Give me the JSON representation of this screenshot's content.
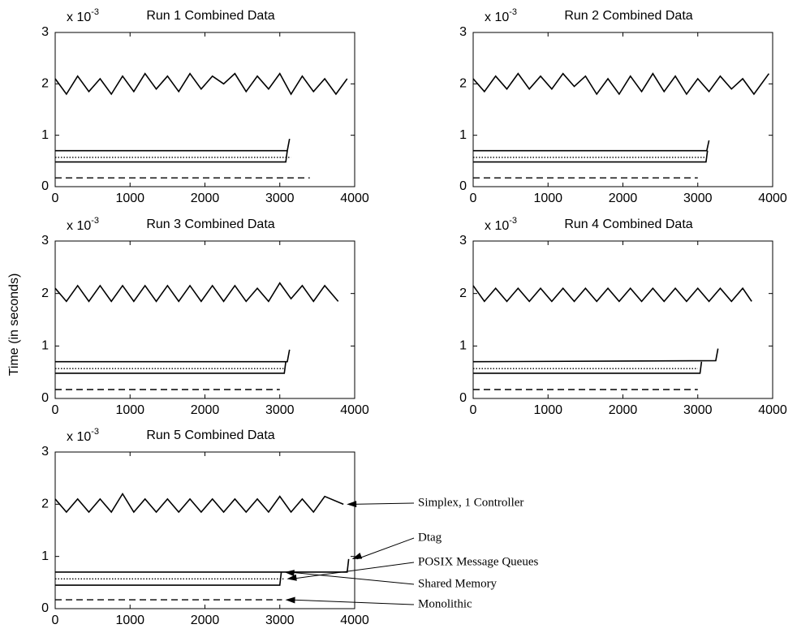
{
  "figure": {
    "ylabel": "Time (in seconds)"
  },
  "chart_data": [
    {
      "type": "line",
      "title": "Run 1 Combined Data",
      "y_multiplier": "x 10",
      "y_multiplier_exp": "-3",
      "xlim": [
        0,
        4000
      ],
      "ylim": [
        0,
        3
      ],
      "xticks": [
        0,
        1000,
        2000,
        3000,
        4000
      ],
      "yticks": [
        0,
        1,
        2,
        3
      ],
      "series": [
        {
          "color": "#000",
          "style": "solid",
          "x": [
            0,
            150,
            300,
            450,
            600,
            750,
            900,
            1050,
            1200,
            1350,
            1500,
            1650,
            1800,
            1950,
            2100,
            2250,
            2400,
            2550,
            2700,
            2850,
            3000,
            3150,
            3300,
            3450,
            3600,
            3750,
            3900
          ],
          "values": [
            2.1,
            1.8,
            2.15,
            1.85,
            2.1,
            1.8,
            2.15,
            1.85,
            2.2,
            1.9,
            2.15,
            1.85,
            2.2,
            1.9,
            2.15,
            2.0,
            2.2,
            1.85,
            2.15,
            1.9,
            2.2,
            1.8,
            2.15,
            1.85,
            2.1,
            1.8,
            2.1
          ]
        },
        {
          "color": "#000",
          "style": "solid",
          "x": [
            0,
            3100,
            3130
          ],
          "values": [
            0.7,
            0.7,
            0.93
          ]
        },
        {
          "color": "#000",
          "style": "dotted",
          "x": [
            0,
            3150
          ],
          "values": [
            0.57,
            0.57
          ]
        },
        {
          "color": "#000",
          "style": "solid",
          "x": [
            0,
            3080,
            3100
          ],
          "values": [
            0.48,
            0.48,
            0.7
          ]
        },
        {
          "color": "#000",
          "style": "dashed",
          "x": [
            0,
            3400
          ],
          "values": [
            0.17,
            0.17
          ]
        }
      ]
    },
    {
      "type": "line",
      "title": "Run 2 Combined Data",
      "y_multiplier": "x 10",
      "y_multiplier_exp": "-3",
      "xlim": [
        0,
        4000
      ],
      "ylim": [
        0,
        3
      ],
      "xticks": [
        0,
        1000,
        2000,
        3000,
        4000
      ],
      "yticks": [
        0,
        1,
        2,
        3
      ],
      "series": [
        {
          "color": "#000",
          "style": "solid",
          "x": [
            0,
            150,
            300,
            450,
            600,
            750,
            900,
            1050,
            1200,
            1350,
            1500,
            1650,
            1800,
            1950,
            2100,
            2250,
            2400,
            2550,
            2700,
            2850,
            3000,
            3150,
            3300,
            3450,
            3600,
            3750,
            3950
          ],
          "values": [
            2.1,
            1.85,
            2.15,
            1.9,
            2.2,
            1.9,
            2.15,
            1.9,
            2.2,
            1.95,
            2.15,
            1.8,
            2.1,
            1.8,
            2.15,
            1.85,
            2.2,
            1.85,
            2.15,
            1.8,
            2.1,
            1.85,
            2.15,
            1.9,
            2.1,
            1.8,
            2.2
          ]
        },
        {
          "color": "#000",
          "style": "solid",
          "x": [
            0,
            3120,
            3150
          ],
          "values": [
            0.7,
            0.7,
            0.9
          ]
        },
        {
          "color": "#000",
          "style": "dotted",
          "x": [
            0,
            3120
          ],
          "values": [
            0.57,
            0.57
          ]
        },
        {
          "color": "#000",
          "style": "solid",
          "x": [
            0,
            3110,
            3130
          ],
          "values": [
            0.48,
            0.48,
            0.7
          ]
        },
        {
          "color": "#000",
          "style": "dashed",
          "x": [
            0,
            3000
          ],
          "values": [
            0.17,
            0.17
          ]
        }
      ]
    },
    {
      "type": "line",
      "title": "Run 3 Combined Data",
      "y_multiplier": "x 10",
      "y_multiplier_exp": "-3",
      "xlim": [
        0,
        4000
      ],
      "ylim": [
        0,
        3
      ],
      "xticks": [
        0,
        1000,
        2000,
        3000,
        4000
      ],
      "yticks": [
        0,
        1,
        2,
        3
      ],
      "series": [
        {
          "color": "#000",
          "style": "solid",
          "x": [
            0,
            150,
            300,
            450,
            600,
            750,
            900,
            1050,
            1200,
            1350,
            1500,
            1650,
            1800,
            1950,
            2100,
            2250,
            2400,
            2550,
            2700,
            2850,
            3000,
            3150,
            3300,
            3450,
            3600,
            3780
          ],
          "values": [
            2.1,
            1.85,
            2.15,
            1.85,
            2.15,
            1.85,
            2.15,
            1.85,
            2.15,
            1.85,
            2.15,
            1.85,
            2.15,
            1.85,
            2.15,
            1.85,
            2.15,
            1.85,
            2.1,
            1.85,
            2.2,
            1.9,
            2.15,
            1.85,
            2.15,
            1.85
          ]
        },
        {
          "color": "#000",
          "style": "solid",
          "x": [
            0,
            3100,
            3130
          ],
          "values": [
            0.7,
            0.7,
            0.93
          ]
        },
        {
          "color": "#000",
          "style": "dotted",
          "x": [
            0,
            3050
          ],
          "values": [
            0.57,
            0.57
          ]
        },
        {
          "color": "#000",
          "style": "solid",
          "x": [
            0,
            3060,
            3080
          ],
          "values": [
            0.48,
            0.48,
            0.7
          ]
        },
        {
          "color": "#000",
          "style": "dashed",
          "x": [
            0,
            3000
          ],
          "values": [
            0.17,
            0.17
          ]
        }
      ]
    },
    {
      "type": "line",
      "title": "Run 4 Combined Data",
      "y_multiplier": "x 10",
      "y_multiplier_exp": "-3",
      "xlim": [
        0,
        4000
      ],
      "ylim": [
        0,
        3
      ],
      "xticks": [
        0,
        1000,
        2000,
        3000,
        4000
      ],
      "yticks": [
        0,
        1,
        2,
        3
      ],
      "series": [
        {
          "color": "#000",
          "style": "solid",
          "x": [
            0,
            150,
            300,
            450,
            600,
            750,
            900,
            1050,
            1200,
            1350,
            1500,
            1650,
            1800,
            1950,
            2100,
            2250,
            2400,
            2550,
            2700,
            2850,
            3000,
            3150,
            3300,
            3450,
            3600,
            3720
          ],
          "values": [
            2.15,
            1.85,
            2.1,
            1.85,
            2.1,
            1.85,
            2.1,
            1.85,
            2.1,
            1.85,
            2.1,
            1.85,
            2.1,
            1.85,
            2.1,
            1.85,
            2.1,
            1.85,
            2.1,
            1.85,
            2.1,
            1.85,
            2.1,
            1.85,
            2.1,
            1.85
          ]
        },
        {
          "color": "#000",
          "style": "solid",
          "x": [
            0,
            3240,
            3270
          ],
          "values": [
            0.7,
            0.72,
            0.95
          ]
        },
        {
          "color": "#000",
          "style": "dotted",
          "x": [
            0,
            3000
          ],
          "values": [
            0.57,
            0.57
          ]
        },
        {
          "color": "#000",
          "style": "solid",
          "x": [
            0,
            3030,
            3050
          ],
          "values": [
            0.48,
            0.48,
            0.7
          ]
        },
        {
          "color": "#000",
          "style": "dashed",
          "x": [
            0,
            3000
          ],
          "values": [
            0.17,
            0.17
          ]
        }
      ]
    },
    {
      "type": "line",
      "title": "Run 5 Combined Data",
      "y_multiplier": "x 10",
      "y_multiplier_exp": "-3",
      "xlim": [
        0,
        4000
      ],
      "ylim": [
        0,
        3
      ],
      "xticks": [
        0,
        1000,
        2000,
        3000,
        4000
      ],
      "yticks": [
        0,
        1,
        2,
        3
      ],
      "series": [
        {
          "name": "Simplex, 1 Controller",
          "color": "#000",
          "style": "solid",
          "x": [
            0,
            150,
            300,
            450,
            600,
            750,
            900,
            1050,
            1200,
            1350,
            1500,
            1650,
            1800,
            1950,
            2100,
            2250,
            2400,
            2550,
            2700,
            2850,
            3000,
            3150,
            3300,
            3450,
            3600,
            3850
          ],
          "values": [
            2.1,
            1.85,
            2.1,
            1.85,
            2.1,
            1.85,
            2.2,
            1.85,
            2.1,
            1.85,
            2.1,
            1.85,
            2.1,
            1.85,
            2.1,
            1.85,
            2.1,
            1.85,
            2.1,
            1.85,
            2.15,
            1.85,
            2.1,
            1.85,
            2.15,
            2.0
          ]
        },
        {
          "name": "Dtag",
          "color": "#000",
          "style": "solid",
          "x": [
            0,
            3900,
            3920
          ],
          "values": [
            0.7,
            0.7,
            0.95
          ]
        },
        {
          "name": "POSIX Message Queues",
          "color": "#000",
          "style": "dotted",
          "x": [
            0,
            3050
          ],
          "values": [
            0.57,
            0.57
          ]
        },
        {
          "name": "Shared Memory",
          "color": "#000",
          "style": "solid",
          "x": [
            0,
            3000,
            3020
          ],
          "values": [
            0.45,
            0.45,
            0.7
          ]
        },
        {
          "name": "Monolithic",
          "color": "#000",
          "style": "dashed",
          "x": [
            0,
            3030
          ],
          "values": [
            0.17,
            0.17
          ]
        }
      ]
    }
  ]
}
